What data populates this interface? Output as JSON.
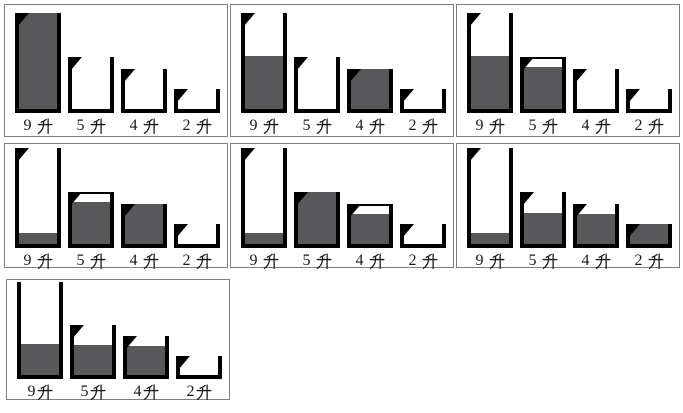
{
  "colors": {
    "water": "#58585a",
    "wall": "#000000",
    "panel_border": "#7f7f7f",
    "background": "#ffffff",
    "label": "#1a1a1a"
  },
  "unit_glyph": "升",
  "capacities": [
    9,
    5,
    4,
    2
  ],
  "panels": [
    {
      "labels": [
        "9 升",
        "5 升",
        "4 升",
        "2 升"
      ],
      "fills_liters": [
        9,
        0,
        0,
        0
      ],
      "spouts": [
        true,
        true,
        true,
        true
      ],
      "rims": [
        false,
        false,
        false,
        false
      ]
    },
    {
      "labels": [
        "9 升",
        "5 升",
        "4 升",
        "2 升"
      ],
      "fills_liters": [
        5,
        0,
        4,
        0
      ],
      "spouts": [
        true,
        true,
        true,
        true
      ],
      "rims": [
        false,
        false,
        false,
        false
      ]
    },
    {
      "labels": [
        "9 升",
        "5 升",
        "4 升",
        "2 升"
      ],
      "fills_liters": [
        5,
        4,
        0,
        0
      ],
      "spouts": [
        true,
        true,
        true,
        true
      ],
      "rims": [
        false,
        true,
        false,
        false
      ]
    },
    {
      "labels": [
        "9 升",
        "5 升",
        "4 升",
        "2 升"
      ],
      "fills_liters": [
        1,
        4,
        4,
        0
      ],
      "spouts": [
        true,
        true,
        true,
        true
      ],
      "rims": [
        false,
        true,
        false,
        false
      ]
    },
    {
      "labels": [
        "9 升",
        "5 升",
        "4 升",
        "2 升"
      ],
      "fills_liters": [
        1,
        5,
        3,
        0
      ],
      "spouts": [
        true,
        true,
        true,
        true
      ],
      "rims": [
        false,
        false,
        true,
        false
      ]
    },
    {
      "labels": [
        "9 升",
        "5 升",
        "4 升",
        "2 升"
      ],
      "fills_liters": [
        1,
        3,
        3,
        2
      ],
      "spouts": [
        true,
        true,
        true,
        true
      ],
      "rims": [
        false,
        false,
        false,
        false
      ]
    },
    {
      "labels": [
        "9升",
        "5升",
        "4升",
        "2升"
      ],
      "fills_liters": [
        3,
        3,
        3,
        0
      ],
      "spouts": [
        false,
        true,
        true,
        true
      ],
      "rims": [
        false,
        false,
        false,
        false
      ]
    }
  ]
}
